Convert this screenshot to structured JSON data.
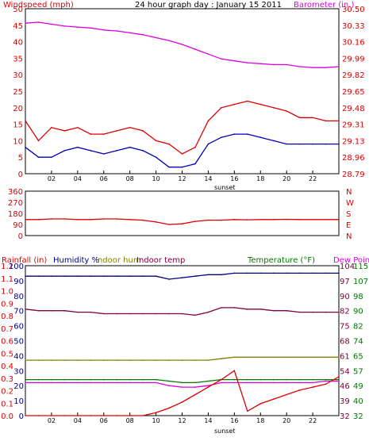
{
  "title": "24 hour graph day : January 15 2011",
  "colors": {
    "wind": "#dd0000",
    "gust": "#0000bb",
    "barometer": "#dd00dd",
    "direction": "#dd0000",
    "rainfall": "#dd0000",
    "humidity": "#000080",
    "indoor_hum": "#808000",
    "indoor_temp": "#800040",
    "temperature": "#007700",
    "dew_point": "#dd00dd"
  },
  "chart_data": [
    {
      "type": "line",
      "title": "24 hour graph day : January 15 2011",
      "left_label": "Windspeed (mph)",
      "right_label": "Barometer (in.)",
      "x_ticks": [
        "02",
        "04",
        "06",
        "08",
        "10",
        "12",
        "14",
        "16",
        "18",
        "20",
        "22"
      ],
      "annotation": "sunset",
      "x": [
        0,
        1,
        2,
        3,
        4,
        5,
        6,
        7,
        8,
        9,
        10,
        11,
        12,
        13,
        14,
        15,
        16,
        17,
        18,
        19,
        20,
        21,
        22,
        23,
        24
      ],
      "ylim_left": [
        0,
        50
      ],
      "yticks_left": [
        "0",
        "5",
        "10",
        "15",
        "20",
        "25",
        "30",
        "35",
        "40",
        "45",
        "50"
      ],
      "ylim_right": [
        28.79,
        30.5
      ],
      "yticks_right": [
        "28.79",
        "28.96",
        "29.13",
        "29.31",
        "29.48",
        "29.65",
        "29.82",
        "29.99",
        "30.16",
        "30.33",
        "30.50"
      ],
      "series": [
        {
          "name": "Windspeed (mph)",
          "axis": "left",
          "color": "#dd0000",
          "values": [
            16,
            10,
            14,
            13,
            14,
            12,
            12,
            13,
            14,
            13,
            10,
            9,
            6,
            8,
            16,
            20,
            21,
            22,
            21,
            20,
            19,
            17,
            17,
            16,
            16
          ]
        },
        {
          "name": "Gust",
          "axis": "left",
          "color": "#0000bb",
          "values": [
            8,
            5,
            5,
            7,
            8,
            7,
            6,
            7,
            8,
            7,
            5,
            2,
            2,
            3,
            9,
            11,
            12,
            12,
            11,
            10,
            9,
            9,
            9,
            9,
            9
          ]
        },
        {
          "name": "Barometer (in.)",
          "axis": "right",
          "color": "#dd00dd",
          "values": [
            30.35,
            30.36,
            30.34,
            30.32,
            30.31,
            30.3,
            30.28,
            30.27,
            30.25,
            30.23,
            30.2,
            30.17,
            30.13,
            30.08,
            30.03,
            29.98,
            29.96,
            29.94,
            29.93,
            29.92,
            29.92,
            29.9,
            29.89,
            29.89,
            29.9
          ]
        }
      ]
    },
    {
      "type": "line",
      "left_ticks": [
        "0",
        "90",
        "180",
        "270",
        "360"
      ],
      "ylim": [
        0,
        360
      ],
      "right_labels": [
        "N",
        "W",
        "S",
        "E",
        "N"
      ],
      "series": [
        {
          "name": "Wind direction",
          "color": "#dd0000",
          "values": [
            130,
            130,
            135,
            135,
            130,
            130,
            135,
            135,
            130,
            125,
            110,
            90,
            95,
            115,
            125,
            125,
            130,
            128,
            130,
            130,
            132,
            130,
            130,
            130,
            130
          ]
        }
      ]
    },
    {
      "type": "line",
      "legend": [
        "Rainfall (in)",
        "Humidity %",
        "Indoor hum",
        "Indoor temp",
        "Temperature (°F)",
        "Dew Point"
      ],
      "annotation": "sunset",
      "x_ticks": [
        "02",
        "04",
        "06",
        "08",
        "10",
        "12",
        "14",
        "16",
        "18",
        "20",
        "22"
      ],
      "x": [
        0,
        1,
        2,
        3,
        4,
        5,
        6,
        7,
        8,
        9,
        10,
        11,
        12,
        13,
        14,
        15,
        16,
        17,
        18,
        19,
        20,
        21,
        22,
        23,
        24
      ],
      "left_ticks_rain": [
        "0.0",
        "0.1",
        "0.2",
        "0.3",
        "0.4",
        "0.5",
        "0.6",
        "0.7",
        "0.8",
        "0.9",
        "1.0",
        "1.1",
        "1.2"
      ],
      "left_ticks_hum": [
        "0",
        "10",
        "20",
        "30",
        "40",
        "50",
        "60",
        "70",
        "80",
        "90",
        "100"
      ],
      "ylim_hum": [
        0,
        100
      ],
      "right_ticks_tempF": [
        "32",
        "40",
        "49",
        "57",
        "65",
        "74",
        "82",
        "90",
        "98",
        "107",
        "115"
      ],
      "ylim_tempF": [
        32,
        115
      ],
      "right_ticks_f2": [
        "32",
        "39",
        "46",
        "54",
        "61",
        "68",
        "75",
        "82",
        "90",
        "97",
        "104"
      ],
      "series": [
        {
          "name": "Humidity %",
          "color": "#000080",
          "values": [
            93,
            93,
            93,
            93,
            93,
            93,
            93,
            93,
            93,
            93,
            93,
            91,
            92,
            93,
            94,
            94,
            95,
            95,
            95,
            95,
            95,
            95,
            95,
            95,
            95
          ]
        },
        {
          "name": "Indoor temp",
          "color": "#800040",
          "values": [
            71,
            70,
            70,
            70,
            69,
            69,
            68,
            68,
            68,
            68,
            68,
            68,
            68,
            67,
            69,
            72,
            72,
            71,
            71,
            70,
            70,
            69,
            69,
            69,
            69
          ]
        },
        {
          "name": "Indoor hum",
          "color": "#808000",
          "values": [
            37,
            37,
            37,
            37,
            37,
            37,
            37,
            37,
            37,
            37,
            37,
            37,
            37,
            37,
            37,
            38,
            39,
            39,
            39,
            39,
            39,
            39,
            39,
            39,
            39
          ]
        },
        {
          "name": "Temperature (°F)",
          "color": "#007700",
          "values": [
            24,
            24,
            24,
            24,
            24,
            24,
            24,
            24,
            24,
            24,
            24,
            23,
            22,
            22,
            23,
            24,
            24,
            24,
            24,
            24,
            24,
            24,
            24,
            24,
            24
          ]
        },
        {
          "name": "Dew Point",
          "color": "#dd00dd",
          "values": [
            22,
            22,
            22,
            22,
            22,
            22,
            22,
            22,
            22,
            22,
            22,
            20,
            19,
            19,
            20,
            22,
            22,
            22,
            22,
            22,
            22,
            22,
            22,
            23,
            23
          ]
        },
        {
          "name": "Rainfall (in)",
          "color": "#dd0000",
          "values": [
            0,
            0,
            0,
            0,
            0,
            0,
            0,
            0,
            0,
            0,
            2,
            5,
            9,
            14,
            19,
            24,
            30,
            3,
            8,
            11,
            14,
            17,
            19,
            21,
            26
          ]
        }
      ]
    }
  ]
}
